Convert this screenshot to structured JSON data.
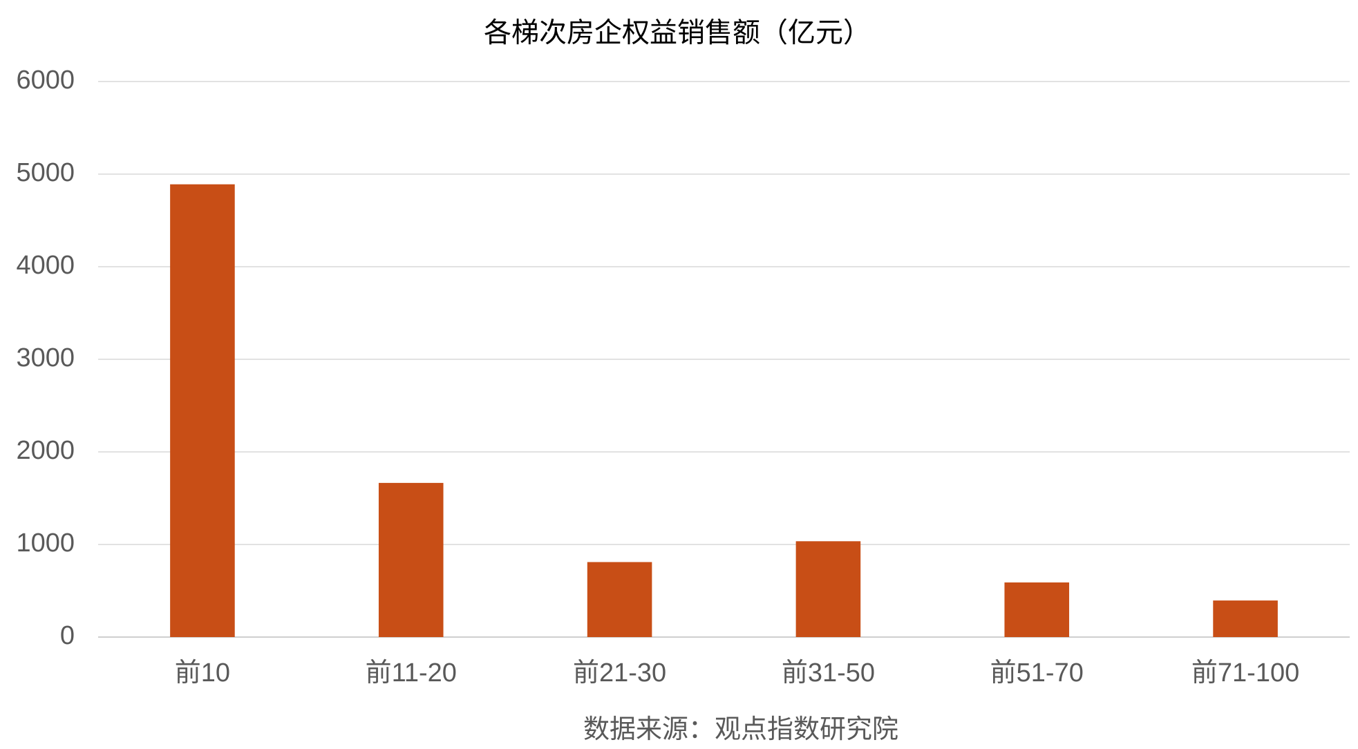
{
  "chart_data": {
    "type": "bar",
    "title": "各梯次房企权益销售额（亿元）",
    "categories": [
      "前10",
      "前11-20",
      "前21-30",
      "前31-50",
      "前51-70",
      "前71-100"
    ],
    "values": [
      4890,
      1665,
      810,
      1035,
      590,
      395
    ],
    "color": "#c84e16",
    "ylim": [
      0,
      6000
    ],
    "yticks": [
      0,
      1000,
      2000,
      3000,
      4000,
      5000,
      6000
    ],
    "grid": true,
    "source": "数据来源：观点指数研究院"
  }
}
